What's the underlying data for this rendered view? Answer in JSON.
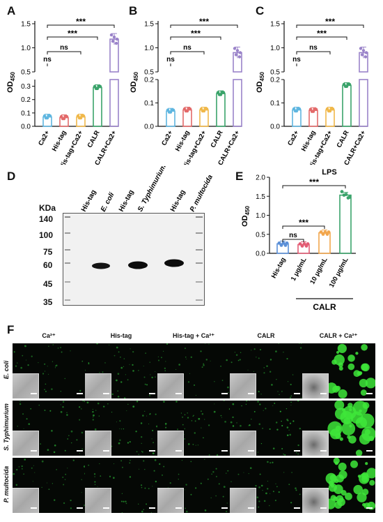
{
  "panels": {
    "A": "A",
    "B": "B",
    "C": "C",
    "D": "D",
    "E": "E",
    "F": "F"
  },
  "bar_charts_abc": {
    "ylabel_main": "OD",
    "ylabel_sub": "450",
    "upper_ticks": [
      "0.5",
      "1.0",
      "1.5"
    ],
    "lower_ticks": [
      "0.0",
      "0.1",
      "0.2",
      "0.3"
    ],
    "categories": [
      "Ca2+",
      "His-tag",
      "His-tag+Ca2+",
      "CALR",
      "CALR+Ca2+"
    ],
    "sig_labels": [
      "ns",
      "ns",
      "***",
      "***"
    ],
    "colors": [
      "#5fb6e0",
      "#e36a6a",
      "#f0b84a",
      "#3aa36a",
      "#9a83c9"
    ]
  },
  "chart_data": [
    {
      "type": "bar",
      "title": "",
      "xlabel": "",
      "ylabel": "OD450",
      "categories": [
        "Ca2+",
        "His-tag",
        "His-tag+Ca2+",
        "CALR",
        "CALR+Ca2+"
      ],
      "values": [
        0.07,
        0.065,
        0.07,
        0.29,
        1.18
      ],
      "ylim": [
        0,
        1.5
      ],
      "axis_break": [
        0.35,
        0.5
      ]
    },
    {
      "type": "bar",
      "title": "",
      "xlabel": "",
      "ylabel": "OD450",
      "categories": [
        "Ca2+",
        "His-tag",
        "His-tag+Ca2+",
        "CALR",
        "CALR+Ca2+"
      ],
      "values": [
        0.065,
        0.07,
        0.07,
        0.14,
        0.9
      ],
      "ylim": [
        0,
        1.5
      ],
      "axis_break": [
        0.2,
        0.5
      ]
    },
    {
      "type": "bar",
      "title": "",
      "xlabel": "",
      "ylabel": "OD450",
      "categories": [
        "Ca2+",
        "His-tag",
        "His-tag+Ca2+",
        "CALR",
        "CALR+Ca2+"
      ],
      "values": [
        0.07,
        0.068,
        0.07,
        0.175,
        0.9
      ],
      "ylim": [
        0,
        1.5
      ],
      "axis_break": [
        0.2,
        0.5
      ]
    },
    {
      "type": "bar",
      "title": "LPS",
      "xlabel": "CALR",
      "ylabel": "OD450",
      "categories": [
        "His-tag",
        "1 μg/mL",
        "10 μg/mL",
        "100 μg/mL"
      ],
      "values": [
        0.25,
        0.23,
        0.54,
        1.53
      ],
      "ylim": [
        0,
        2.0
      ],
      "yticks": [
        "0.0",
        "0.5",
        "1.0",
        "1.5",
        "2.0"
      ]
    }
  ],
  "chart_e": {
    "title": "LPS",
    "categories": [
      "His-tag",
      "1 μg/mL",
      "10 μg/mL",
      "100 μg/mL"
    ],
    "group_label": "CALR",
    "sig_labels": [
      "ns",
      "***",
      "***"
    ],
    "colors": [
      "#5a8fd8",
      "#e35b73",
      "#f2a64c",
      "#3aa36a"
    ]
  },
  "blot": {
    "kda_label": "KDa",
    "markers": [
      "140",
      "100",
      "75",
      "60",
      "45",
      "35"
    ],
    "lanes": [
      "His-tag",
      "E. coli",
      "His-tag",
      "S. Typhimurium",
      "His-tag",
      "P. multocida"
    ]
  },
  "micro": {
    "conditions": [
      "Ca²⁺",
      "His-tag",
      "His-tag + Ca²⁺",
      "CALR",
      "CALR + Ca²⁺"
    ],
    "rows": [
      "E. coli",
      "S. Typhimurium",
      "P. multocida"
    ]
  }
}
